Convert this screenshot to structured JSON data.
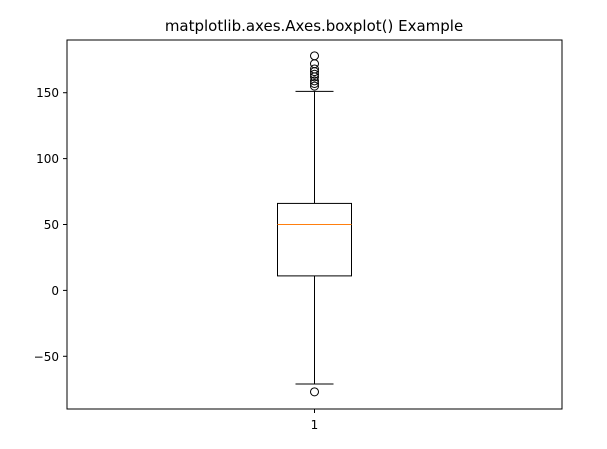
{
  "chart_data": {
    "type": "boxplot",
    "title": "matplotlib.axes.Axes.boxplot() Example",
    "xlabel": "",
    "ylabel": "",
    "categories": [
      "1"
    ],
    "ylim": [
      -90,
      190
    ],
    "y_ticks": [
      {
        "value": -50,
        "label": "−50"
      },
      {
        "value": 0,
        "label": "0"
      },
      {
        "value": 50,
        "label": "50"
      },
      {
        "value": 100,
        "label": "100"
      },
      {
        "value": 150,
        "label": "150"
      }
    ],
    "boxes": [
      {
        "category": "1",
        "whisker_low": -71,
        "q1": 11,
        "median": 50,
        "q3": 66,
        "whisker_high": 151,
        "fliers": [
          -77,
          155,
          157,
          159,
          162,
          164,
          166,
          168,
          172,
          178
        ]
      }
    ],
    "colors": {
      "box": "#000000",
      "median": "#ff7f0e",
      "flier": "#000000"
    },
    "grid": false
  }
}
